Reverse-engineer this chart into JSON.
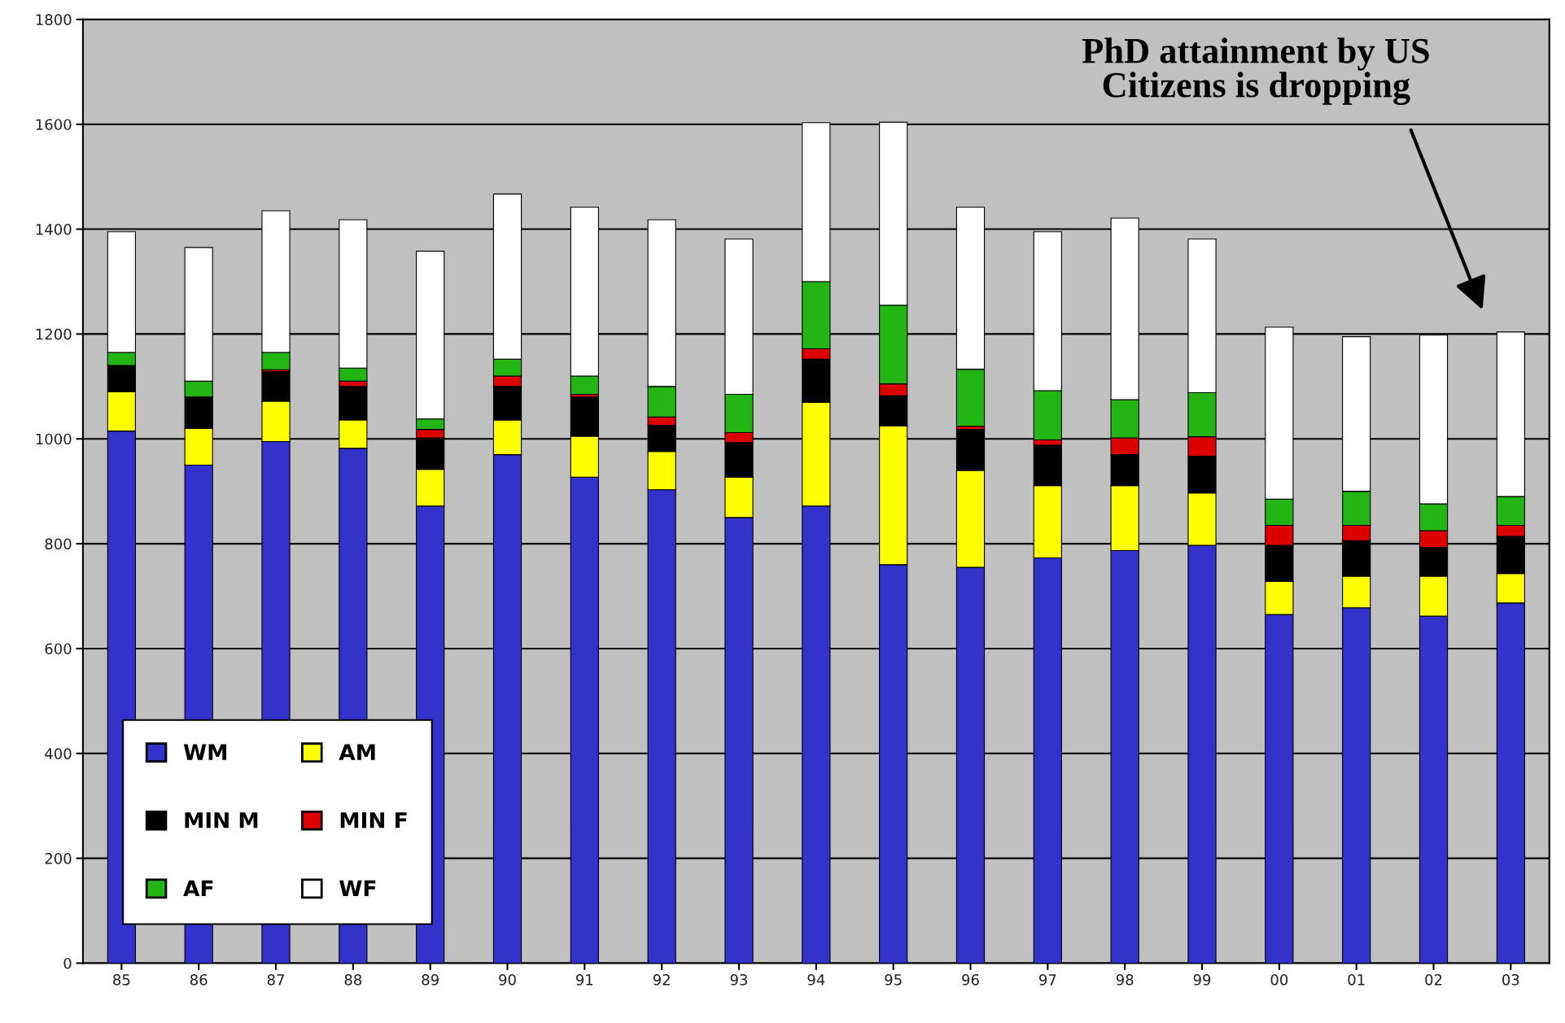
{
  "chart_data": {
    "type": "bar",
    "stacked": true,
    "categories": [
      "85",
      "86",
      "87",
      "88",
      "89",
      "90",
      "91",
      "92",
      "93",
      "94",
      "95",
      "96",
      "97",
      "98",
      "99",
      "00",
      "01",
      "02",
      "03"
    ],
    "series": [
      {
        "name": "WM",
        "color": "#3333cc",
        "values": [
          1015,
          950,
          995,
          982,
          872,
          970,
          927,
          903,
          850,
          872,
          760,
          755,
          773,
          787,
          797,
          665,
          678,
          662,
          687
        ]
      },
      {
        "name": "AM",
        "color": "#ffff00",
        "values": [
          75,
          70,
          77,
          54,
          70,
          66,
          78,
          73,
          77,
          198,
          265,
          185,
          138,
          124,
          100,
          63,
          60,
          76,
          56
        ]
      },
      {
        "name": "MIN M",
        "color": "#000000",
        "values": [
          50,
          60,
          56,
          64,
          60,
          64,
          75,
          50,
          66,
          82,
          57,
          78,
          77,
          59,
          70,
          69,
          68,
          55,
          71
        ]
      },
      {
        "name": "MIN F",
        "color": "#dd0000",
        "values": [
          0,
          0,
          4,
          10,
          16,
          20,
          5,
          16,
          19,
          20,
          23,
          6,
          10,
          32,
          37,
          38,
          29,
          32,
          21
        ]
      },
      {
        "name": "AF",
        "color": "#22b514",
        "values": [
          25,
          30,
          33,
          25,
          20,
          32,
          35,
          58,
          73,
          128,
          150,
          109,
          94,
          73,
          84,
          50,
          65,
          51,
          55
        ]
      },
      {
        "name": "WF",
        "color": "#ffffff",
        "values": [
          230,
          255,
          270,
          283,
          320,
          315,
          322,
          318,
          296,
          303,
          349,
          309,
          303,
          346,
          293,
          328,
          295,
          322,
          314
        ]
      }
    ],
    "ylim": [
      0,
      1800
    ],
    "yticks": [
      0,
      200,
      400,
      600,
      800,
      1000,
      1200,
      1400,
      1600,
      1800
    ],
    "grid": "y",
    "legend": "bottom left",
    "annotations": [
      "PhD attainment by US\nCitizens is dropping"
    ]
  }
}
